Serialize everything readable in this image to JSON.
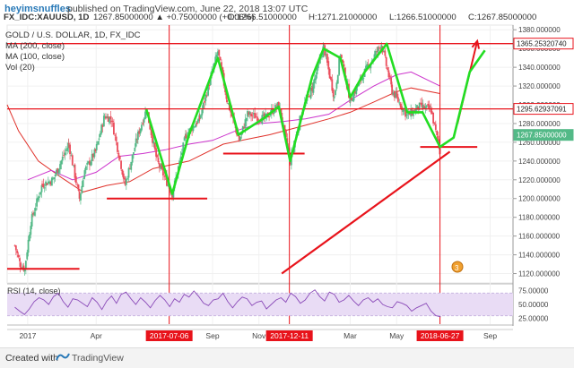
{
  "header": {
    "username": "heyimsnuffles",
    "published": "published on TradingView.com, June 22, 2018 13:07 UTC"
  },
  "ticker": {
    "symbol": "FX_IDC:XAUUSD, 1D",
    "change": "1267.85000000 ▲ +0.75000000 (+0.06%)",
    "open": "O:1266.51000000",
    "high": "H:1271.21000000",
    "low": "L:1266.51000000",
    "close": "C:1267.85000000"
  },
  "legend": {
    "title": "GOLD / U.S. DOLLAR, 1D, FX_IDC",
    "ma200": "MA (200, close)",
    "ma100": "MA (100, close)",
    "vol": "Vol (20)"
  },
  "rsi": {
    "label": "RSI (14, close)",
    "ticks": [
      "75.00000",
      "50.00000",
      "25.00000"
    ]
  },
  "footer": {
    "created_with": "Created with",
    "brand": "TradingView"
  },
  "colors": {
    "candle_up": "#53b987",
    "candle_down": "#eb4d5c",
    "ma200": "#e0312a",
    "ma100": "#cc33cc",
    "drawing_red": "#e8131b",
    "drawing_green": "#22dd22",
    "rsi_line": "#8a4ab8",
    "rsi_band": "#e9dcf5"
  },
  "chart_data": {
    "type": "candlestick",
    "title": "GOLD / U.S. DOLLAR, 1D, FX_IDC",
    "yticks": [
      1120,
      1140,
      1160,
      1180,
      1200,
      1220,
      1240,
      1260,
      1280,
      1300,
      1320,
      1340,
      1360,
      1380
    ],
    "ytick_labels": [
      "1120.000000",
      "1140.000000",
      "1160.000000",
      "1180.000000",
      "1200.000000",
      "1220.000000",
      "1240.000000",
      "1260.000000",
      "1280.000000",
      "1300.000000",
      "1320.000000",
      "1340.000000",
      "1360.000000",
      "1380.000000"
    ],
    "ylim": [
      1110,
      1385
    ],
    "x_labels": [
      "2017",
      "Apr",
      "Sep",
      "Nov",
      "Mar",
      "May",
      "Sep"
    ],
    "x_label_dates": [
      "2017-01-01",
      "2017-04-01",
      "2017-09-01",
      "2017-11-01",
      "2018-03-01",
      "2018-05-01",
      "2018-09-01"
    ],
    "xlim": [
      "2016-12-05",
      "2018-10-01"
    ],
    "highlight_dates": [
      "2017-07-06",
      "2017-12-11",
      "2018-06-27"
    ],
    "price_labels": [
      "1365.25320740",
      "1295.62937091",
      "1267.85000000"
    ],
    "price_label_values": [
      1365.2532,
      1295.6294,
      1267.85
    ],
    "price_path": [
      [
        "2016-12-15",
        1150
      ],
      [
        "2016-12-22",
        1130
      ],
      [
        "2016-12-28",
        1125
      ],
      [
        "2017-01-05",
        1175
      ],
      [
        "2017-01-20",
        1215
      ],
      [
        "2017-02-03",
        1220
      ],
      [
        "2017-02-24",
        1258
      ],
      [
        "2017-03-10",
        1200
      ],
      [
        "2017-03-17",
        1230
      ],
      [
        "2017-03-31",
        1250
      ],
      [
        "2017-04-12",
        1288
      ],
      [
        "2017-04-21",
        1285
      ],
      [
        "2017-05-09",
        1215
      ],
      [
        "2017-05-26",
        1268
      ],
      [
        "2017-06-06",
        1295
      ],
      [
        "2017-06-20",
        1240
      ],
      [
        "2017-07-10",
        1205
      ],
      [
        "2017-07-28",
        1268
      ],
      [
        "2017-08-15",
        1285
      ],
      [
        "2017-09-08",
        1357
      ],
      [
        "2017-09-20",
        1305
      ],
      [
        "2017-10-06",
        1262
      ],
      [
        "2017-10-17",
        1290
      ],
      [
        "2017-11-08",
        1285
      ],
      [
        "2017-11-27",
        1300
      ],
      [
        "2017-12-12",
        1240
      ],
      [
        "2017-12-28",
        1295
      ],
      [
        "2018-01-10",
        1318
      ],
      [
        "2018-01-25",
        1362
      ],
      [
        "2018-02-08",
        1308
      ],
      [
        "2018-02-16",
        1355
      ],
      [
        "2018-03-01",
        1305
      ],
      [
        "2018-03-20",
        1335
      ],
      [
        "2018-04-11",
        1365
      ],
      [
        "2018-04-25",
        1315
      ],
      [
        "2018-05-15",
        1288
      ],
      [
        "2018-05-31",
        1298
      ],
      [
        "2018-06-15",
        1295
      ],
      [
        "2018-06-27",
        1250
      ],
      [
        "2018-06-28",
        1252
      ]
    ],
    "ma200_path": [
      [
        "2016-12-05",
        1300
      ],
      [
        "2016-12-20",
        1272
      ],
      [
        "2017-01-15",
        1240
      ],
      [
        "2017-02-15",
        1222
      ],
      [
        "2017-03-15",
        1207
      ],
      [
        "2017-04-15",
        1214
      ],
      [
        "2017-05-15",
        1218
      ],
      [
        "2017-06-15",
        1232
      ],
      [
        "2017-08-01",
        1240
      ],
      [
        "2017-09-15",
        1258
      ],
      [
        "2017-10-15",
        1263
      ],
      [
        "2017-11-15",
        1268
      ],
      [
        "2017-12-31",
        1278
      ],
      [
        "2018-02-01",
        1285
      ],
      [
        "2018-03-01",
        1292
      ],
      [
        "2018-04-01",
        1303
      ],
      [
        "2018-05-01",
        1314
      ],
      [
        "2018-05-20",
        1318
      ],
      [
        "2018-06-27",
        1312
      ]
    ],
    "ma100_path": [
      [
        "2017-01-01",
        1220
      ],
      [
        "2017-02-01",
        1230
      ],
      [
        "2017-03-01",
        1220
      ],
      [
        "2017-04-01",
        1228
      ],
      [
        "2017-05-01",
        1245
      ],
      [
        "2017-06-01",
        1248
      ],
      [
        "2017-07-01",
        1252
      ],
      [
        "2017-08-01",
        1258
      ],
      [
        "2017-09-01",
        1262
      ],
      [
        "2017-10-01",
        1272
      ],
      [
        "2017-11-01",
        1280
      ],
      [
        "2017-12-01",
        1282
      ],
      [
        "2018-01-01",
        1285
      ],
      [
        "2018-02-01",
        1290
      ],
      [
        "2018-03-01",
        1305
      ],
      [
        "2018-04-01",
        1320
      ],
      [
        "2018-05-01",
        1332
      ],
      [
        "2018-05-20",
        1335
      ],
      [
        "2018-06-27",
        1320
      ]
    ],
    "drawings": {
      "horizontal_red": [
        {
          "name": "top-resistance",
          "y": 1365.25,
          "from": "2016-12-05",
          "to": "2018-10-01"
        },
        {
          "name": "mid-resistance",
          "y": 1295.63,
          "from": "2016-12-05",
          "to": "2018-10-01"
        },
        {
          "name": "support-1",
          "y": 1125,
          "from": "2016-12-05",
          "to": "2017-03-10"
        },
        {
          "name": "support-2",
          "y": 1200,
          "from": "2017-04-15",
          "to": "2017-08-25"
        },
        {
          "name": "support-3",
          "y": 1248,
          "from": "2017-09-15",
          "to": "2017-12-31"
        },
        {
          "name": "support-4",
          "y": 1255,
          "from": "2018-06-01",
          "to": "2018-08-15"
        }
      ],
      "red_trend": [
        [
          "2017-12-01",
          1120
        ],
        [
          "2018-07-10",
          1250
        ]
      ],
      "red_arrow": [
        [
          "2018-07-20",
          1280
        ],
        [
          "2018-08-15",
          1368
        ]
      ],
      "green_path": [
        [
          "2017-06-06",
          1295
        ],
        [
          "2017-07-10",
          1205
        ],
        [
          "2017-08-01",
          1268
        ],
        [
          "2017-09-08",
          1350
        ],
        [
          "2017-10-05",
          1268
        ],
        [
          "2017-11-08",
          1286
        ],
        [
          "2017-11-27",
          1298
        ],
        [
          "2017-12-12",
          1240
        ],
        [
          "2018-01-10",
          1330
        ],
        [
          "2018-01-25",
          1360
        ],
        [
          "2018-02-16",
          1350
        ],
        [
          "2018-03-01",
          1308
        ],
        [
          "2018-03-20",
          1335
        ],
        [
          "2018-04-18",
          1365
        ],
        [
          "2018-05-15",
          1292
        ],
        [
          "2018-06-04",
          1292
        ],
        [
          "2018-06-27",
          1255
        ],
        [
          "2018-07-15",
          1265
        ],
        [
          "2018-08-05",
          1335
        ],
        [
          "2018-08-25",
          1358
        ]
      ]
    },
    "rsi_values": [
      45,
      38,
      32,
      42,
      55,
      62,
      58,
      50,
      64,
      70,
      55,
      45,
      60,
      58,
      52,
      46,
      62,
      54,
      41,
      56,
      65,
      52,
      68,
      72,
      60,
      50,
      62,
      54,
      44,
      57,
      66,
      58,
      46,
      60,
      54,
      68,
      63,
      74,
      64,
      52,
      48,
      58,
      60,
      70,
      55,
      44,
      55,
      63,
      60,
      48,
      54,
      56,
      42,
      50,
      58,
      62,
      54,
      70,
      64,
      52,
      58,
      70,
      76,
      64,
      56,
      72,
      68,
      54,
      58,
      66,
      56,
      48,
      58,
      62,
      54,
      60,
      50,
      46,
      44,
      55,
      52,
      48,
      38,
      44,
      48,
      52,
      38,
      30,
      28
    ],
    "rsi_range": [
      "2016-12-15",
      "2018-06-28"
    ],
    "rsi_ylim": [
      15,
      85
    ]
  }
}
